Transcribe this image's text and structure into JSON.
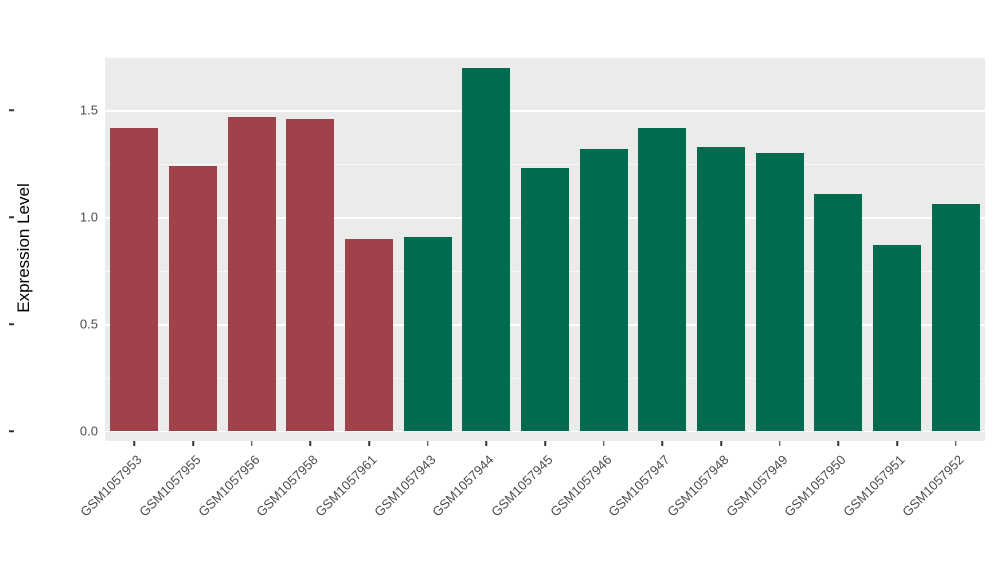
{
  "chart_data": {
    "type": "bar",
    "title": "",
    "xlabel": "",
    "ylabel": "Expression Level",
    "ylim": [
      0,
      1.75
    ],
    "yticks": [
      "0.0",
      "0.5",
      "1.0",
      "1.5"
    ],
    "ytick_values": [
      0.0,
      0.5,
      1.0,
      1.5
    ],
    "yminor_values": [
      0.25,
      0.75,
      1.25,
      1.75
    ],
    "grid": "on",
    "legend_position": "none",
    "plot_background": "#EBEBEB",
    "gridline_color": "#FFFFFF",
    "categories": [
      "GSM1057953",
      "GSM1057955",
      "GSM1057956",
      "GSM1057958",
      "GSM1057961",
      "GSM1057943",
      "GSM1057944",
      "GSM1057945",
      "GSM1057946",
      "GSM1057947",
      "GSM1057948",
      "GSM1057949",
      "GSM1057950",
      "GSM1057951",
      "GSM1057952"
    ],
    "values": [
      1.42,
      1.24,
      1.47,
      1.46,
      0.9,
      0.91,
      1.7,
      1.23,
      1.32,
      1.42,
      1.33,
      1.3,
      1.11,
      0.87,
      1.06
    ],
    "bar_groups": [
      "red",
      "red",
      "red",
      "red",
      "red",
      "green",
      "green",
      "green",
      "green",
      "green",
      "green",
      "green",
      "green",
      "green",
      "green"
    ],
    "group_colors": {
      "red": "#A0424B",
      "green": "#016B4F"
    }
  }
}
